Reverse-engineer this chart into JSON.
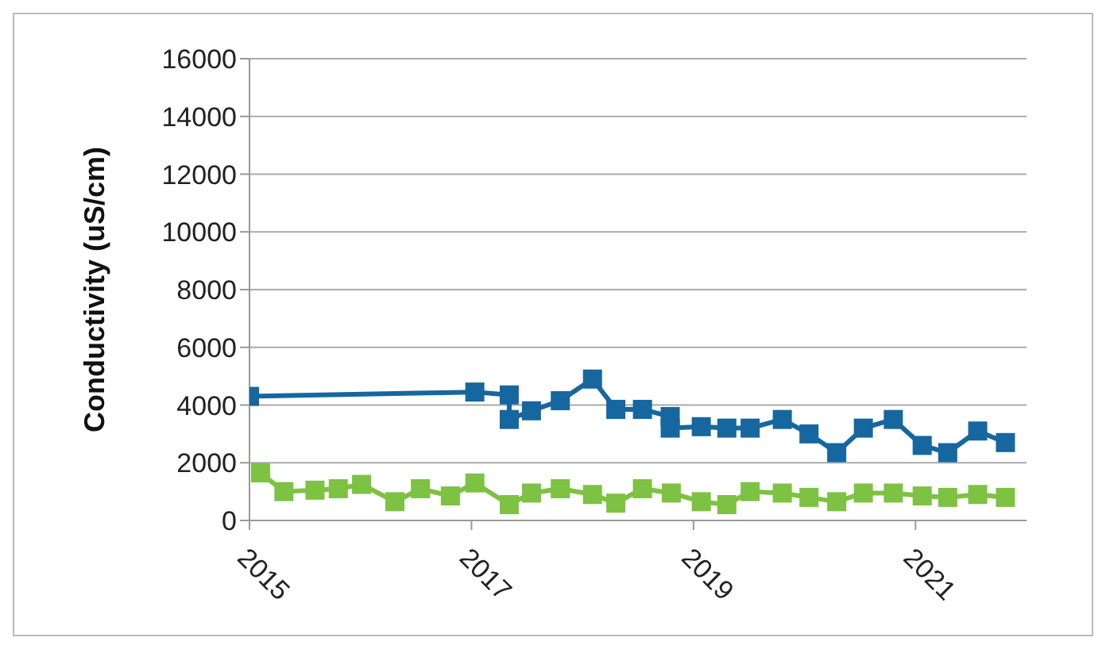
{
  "chart_data": {
    "type": "line",
    "ylabel": "Conductivity (uS/cm)",
    "xlim": [
      2015,
      2022
    ],
    "xticks": [
      2015,
      2017,
      2019,
      2021
    ],
    "ylim": [
      0,
      16000
    ],
    "yticks": [
      0,
      2000,
      4000,
      6000,
      8000,
      10000,
      12000,
      14000,
      16000
    ],
    "grid": "y",
    "legend": false,
    "marker": "square",
    "line_style": "solid",
    "series": [
      {
        "color": "#16679f",
        "x": [
          2015.0,
          2017.03,
          2017.34,
          2017.34,
          2017.54,
          2017.8,
          2018.09,
          2018.3,
          2018.54,
          2018.79,
          2018.79,
          2019.07,
          2019.3,
          2019.51,
          2019.8,
          2020.04,
          2020.29,
          2020.53,
          2020.8,
          2021.06,
          2021.29,
          2021.56,
          2021.81
        ],
        "values": [
          4300,
          4450,
          4350,
          3500,
          3800,
          4150,
          4900,
          3850,
          3850,
          3600,
          3200,
          3250,
          3200,
          3200,
          3500,
          3000,
          2350,
          3200,
          3500,
          2600,
          2350,
          3100,
          2700
        ]
      },
      {
        "color": "#7dc242",
        "x": [
          2015.1,
          2015.31,
          2015.59,
          2015.8,
          2016.01,
          2016.31,
          2016.54,
          2016.81,
          2017.03,
          2017.34,
          2017.54,
          2017.8,
          2018.09,
          2018.3,
          2018.54,
          2018.8,
          2019.07,
          2019.3,
          2019.51,
          2019.8,
          2020.04,
          2020.29,
          2020.53,
          2020.8,
          2021.06,
          2021.29,
          2021.56,
          2021.81
        ],
        "values": [
          1650,
          1000,
          1050,
          1100,
          1250,
          650,
          1100,
          850,
          1300,
          550,
          950,
          1100,
          900,
          600,
          1100,
          950,
          650,
          550,
          1000,
          950,
          800,
          650,
          950,
          950,
          850,
          800,
          900,
          800
        ]
      }
    ]
  }
}
